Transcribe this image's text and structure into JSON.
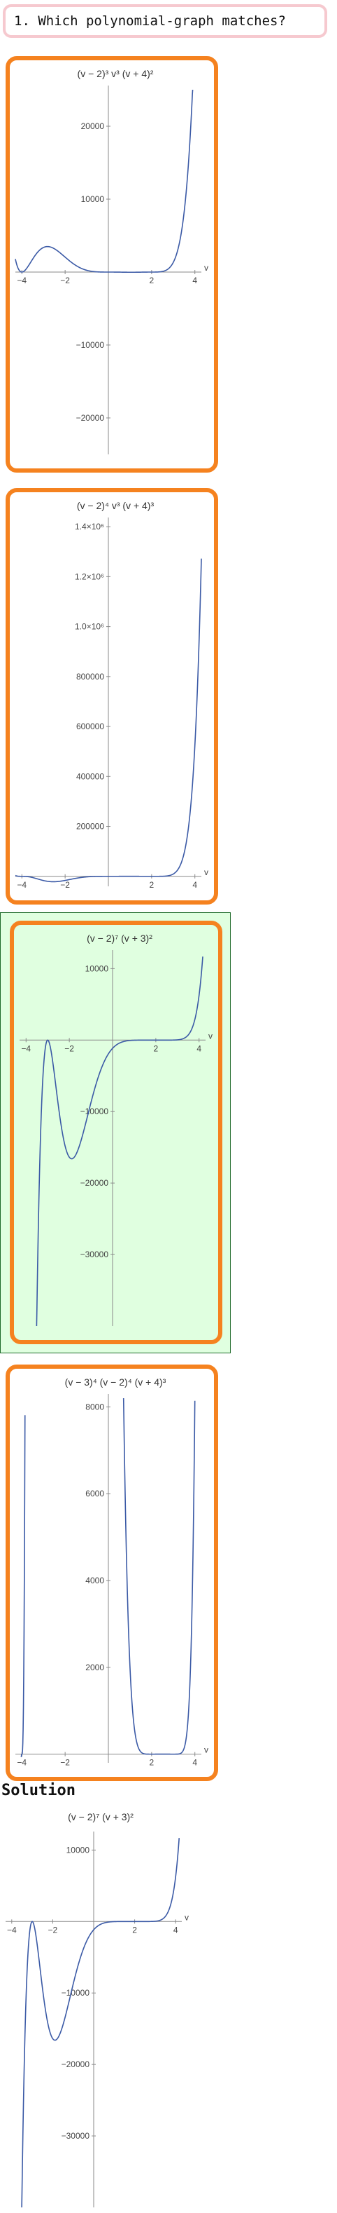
{
  "question": {
    "text": "1. Which polynomial-graph matches?"
  },
  "colors": {
    "choice_border": "#f5821f",
    "selected_bg": "#e0ffe0",
    "curve": "#3b5aa6",
    "question_border": "#f6c9cf"
  },
  "choices": [
    {
      "title": "(v − 2)³ v³ (v + 4)²",
      "selected": false,
      "chart_data": {
        "type": "line",
        "xlabel": "v",
        "xlim": [
          -4.3,
          4.3
        ],
        "ylim": [
          -25000,
          25000
        ],
        "x_ticks": [
          "−4",
          "−2",
          "2",
          "4"
        ],
        "y_ticks": [
          "20000",
          "10000",
          "−10000",
          "−20000"
        ]
      }
    },
    {
      "title": "(v − 2)⁴ v³ (v + 4)³",
      "selected": false,
      "chart_data": {
        "type": "line",
        "xlabel": "v",
        "xlim": [
          -4.3,
          4.3
        ],
        "ylim": [
          -40000,
          1420000
        ],
        "x_ticks": [
          "−4",
          "−2",
          "2",
          "4"
        ],
        "y_ticks": [
          "1.4×10⁶",
          "1.2×10⁶",
          "1.0×10⁶",
          "800000",
          "600000",
          "400000",
          "200000"
        ]
      }
    },
    {
      "title": "(v − 2)⁷ (v + 3)²",
      "selected": true,
      "chart_data": {
        "type": "line",
        "xlabel": "v",
        "xlim": [
          -4.3,
          4.3
        ],
        "ylim": [
          -40000,
          12000
        ],
        "x_ticks": [
          "−4",
          "−2",
          "2",
          "4"
        ],
        "y_ticks": [
          "10000",
          "−10000",
          "−20000",
          "−30000"
        ]
      }
    },
    {
      "title": "(v − 3)⁴ (v − 2)⁴ (v + 4)³",
      "selected": false,
      "chart_data": {
        "type": "line",
        "xlabel": "v",
        "xlim": [
          -4.3,
          4.3
        ],
        "ylim": [
          -200,
          8200
        ],
        "x_ticks": [
          "−4",
          "−2",
          "2",
          "4"
        ],
        "y_ticks": [
          "8000",
          "6000",
          "4000",
          "2000"
        ]
      }
    }
  ],
  "solution": {
    "label": "Solution",
    "title": "(v − 2)⁷ (v + 3)²",
    "chart_data": {
      "type": "line",
      "xlabel": "v",
      "xlim": [
        -4.3,
        4.3
      ],
      "ylim": [
        -40000,
        12000
      ],
      "x_ticks": [
        "−4",
        "−2",
        "2",
        "4"
      ],
      "y_ticks": [
        "10000",
        "−10000",
        "−20000",
        "−30000"
      ]
    }
  }
}
